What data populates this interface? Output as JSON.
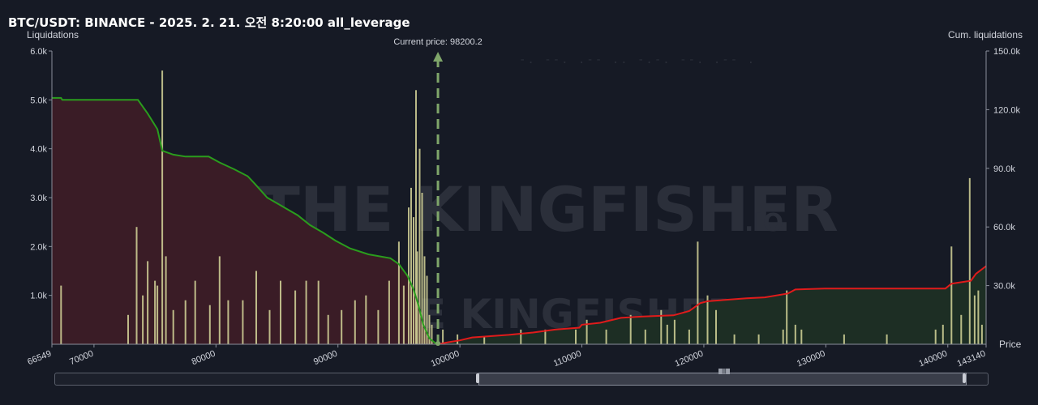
{
  "title": "BTC/USDT: BINANCE - 2025. 2. 21. 오전 8:20:00 all_leverage",
  "left_axis_title": "Liquidations",
  "right_axis_title": "Cum. liquidations",
  "price_label": "Price",
  "current_price_label": "Current price: 98200.2",
  "watermark": {
    "text": "THE KINGFISHER",
    "suffix": ".IO"
  },
  "redacted_text": "-.  --.  .--  ..  -.-.  --.  .--  .",
  "colors": {
    "background": "#161a25",
    "long_cum": "#2a9d1d",
    "long_fill": "#3a1c26",
    "short_cum": "#e01b1b",
    "short_fill": "#1d2e24",
    "bars": "#d6d69a",
    "current_price": "#7fa66a"
  },
  "chart_data": {
    "type": "bar",
    "title": "BTC/USDT: BINANCE - 2025. 2. 21. 오전 8:20:00 all_leverage",
    "xlabel": "Price",
    "ylabel": "Liquidations",
    "y2label": "Cum. liquidations",
    "xlim": [
      66549,
      143140
    ],
    "ylim": [
      0,
      6000
    ],
    "y2lim": [
      0,
      150000
    ],
    "grid": false,
    "current_price": 98200.2,
    "x_ticks": [
      "66549",
      "70000",
      "80000",
      "90000",
      "100000",
      "110000",
      "120000",
      "130000",
      "140000",
      "143140"
    ],
    "y_ticks": [
      "1.0k",
      "2.0k",
      "3.0k",
      "4.0k",
      "5.0k",
      "6.0k"
    ],
    "y2_ticks": [
      "30.0k",
      "60.0k",
      "90.0k",
      "120.0k",
      "150.0k"
    ],
    "liquidation_bars": [
      {
        "x": 67300,
        "y": 1200
      },
      {
        "x": 72800,
        "y": 600
      },
      {
        "x": 73500,
        "y": 2400
      },
      {
        "x": 74000,
        "y": 1000
      },
      {
        "x": 74400,
        "y": 1700
      },
      {
        "x": 75000,
        "y": 1300
      },
      {
        "x": 75200,
        "y": 1200
      },
      {
        "x": 75600,
        "y": 5600
      },
      {
        "x": 75900,
        "y": 1800
      },
      {
        "x": 76500,
        "y": 700
      },
      {
        "x": 77500,
        "y": 900
      },
      {
        "x": 78300,
        "y": 1300
      },
      {
        "x": 79500,
        "y": 800
      },
      {
        "x": 80300,
        "y": 1800
      },
      {
        "x": 81000,
        "y": 900
      },
      {
        "x": 82200,
        "y": 900
      },
      {
        "x": 83300,
        "y": 1500
      },
      {
        "x": 84400,
        "y": 700
      },
      {
        "x": 85300,
        "y": 1300
      },
      {
        "x": 86500,
        "y": 1100
      },
      {
        "x": 87400,
        "y": 1300
      },
      {
        "x": 88400,
        "y": 1300
      },
      {
        "x": 89200,
        "y": 600
      },
      {
        "x": 90300,
        "y": 700
      },
      {
        "x": 91400,
        "y": 900
      },
      {
        "x": 92300,
        "y": 1000
      },
      {
        "x": 93300,
        "y": 700
      },
      {
        "x": 94200,
        "y": 1300
      },
      {
        "x": 95000,
        "y": 2100
      },
      {
        "x": 95400,
        "y": 1200
      },
      {
        "x": 95800,
        "y": 2800
      },
      {
        "x": 96000,
        "y": 3200
      },
      {
        "x": 96200,
        "y": 2600
      },
      {
        "x": 96400,
        "y": 5200
      },
      {
        "x": 96500,
        "y": 1900
      },
      {
        "x": 96700,
        "y": 4000
      },
      {
        "x": 96900,
        "y": 3100
      },
      {
        "x": 97100,
        "y": 1800
      },
      {
        "x": 97300,
        "y": 1400
      },
      {
        "x": 97500,
        "y": 600
      },
      {
        "x": 97700,
        "y": 400
      },
      {
        "x": 98600,
        "y": 300
      },
      {
        "x": 99800,
        "y": 200
      },
      {
        "x": 102000,
        "y": 150
      },
      {
        "x": 105000,
        "y": 300
      },
      {
        "x": 107000,
        "y": 300
      },
      {
        "x": 109500,
        "y": 300
      },
      {
        "x": 110400,
        "y": 500
      },
      {
        "x": 112000,
        "y": 300
      },
      {
        "x": 114000,
        "y": 600
      },
      {
        "x": 115200,
        "y": 300
      },
      {
        "x": 116500,
        "y": 700
      },
      {
        "x": 117000,
        "y": 400
      },
      {
        "x": 117600,
        "y": 500
      },
      {
        "x": 118800,
        "y": 300
      },
      {
        "x": 119500,
        "y": 2100
      },
      {
        "x": 120300,
        "y": 1000
      },
      {
        "x": 121000,
        "y": 700
      },
      {
        "x": 122500,
        "y": 200
      },
      {
        "x": 124500,
        "y": 200
      },
      {
        "x": 126500,
        "y": 300
      },
      {
        "x": 126800,
        "y": 1100
      },
      {
        "x": 127500,
        "y": 400
      },
      {
        "x": 128000,
        "y": 300
      },
      {
        "x": 131500,
        "y": 200
      },
      {
        "x": 135000,
        "y": 200
      },
      {
        "x": 139000,
        "y": 300
      },
      {
        "x": 139600,
        "y": 400
      },
      {
        "x": 140300,
        "y": 2000
      },
      {
        "x": 141100,
        "y": 600
      },
      {
        "x": 141800,
        "y": 3400
      },
      {
        "x": 142200,
        "y": 1000
      },
      {
        "x": 142500,
        "y": 1100
      },
      {
        "x": 142800,
        "y": 400
      }
    ],
    "long_cumulative": [
      {
        "x": 66549,
        "y": 126000
      },
      {
        "x": 67300,
        "y": 126000
      },
      {
        "x": 67400,
        "y": 125000
      },
      {
        "x": 73600,
        "y": 125000
      },
      {
        "x": 74400,
        "y": 118000
      },
      {
        "x": 75200,
        "y": 110000
      },
      {
        "x": 75600,
        "y": 99000
      },
      {
        "x": 76500,
        "y": 97000
      },
      {
        "x": 77500,
        "y": 96000
      },
      {
        "x": 79400,
        "y": 96000
      },
      {
        "x": 80300,
        "y": 93000
      },
      {
        "x": 81500,
        "y": 89500
      },
      {
        "x": 82600,
        "y": 86000
      },
      {
        "x": 83200,
        "y": 82000
      },
      {
        "x": 84200,
        "y": 75000
      },
      {
        "x": 85600,
        "y": 70000
      },
      {
        "x": 86700,
        "y": 66000
      },
      {
        "x": 87700,
        "y": 61000
      },
      {
        "x": 88800,
        "y": 57000
      },
      {
        "x": 89800,
        "y": 53000
      },
      {
        "x": 91000,
        "y": 49000
      },
      {
        "x": 92500,
        "y": 46000
      },
      {
        "x": 94300,
        "y": 44000
      },
      {
        "x": 95000,
        "y": 41000
      },
      {
        "x": 95700,
        "y": 35000
      },
      {
        "x": 96200,
        "y": 28000
      },
      {
        "x": 96600,
        "y": 20000
      },
      {
        "x": 97000,
        "y": 10000
      },
      {
        "x": 97500,
        "y": 3000
      },
      {
        "x": 98000,
        "y": 500
      },
      {
        "x": 98200,
        "y": 0
      }
    ],
    "short_cumulative": [
      {
        "x": 98200,
        "y": 0
      },
      {
        "x": 99000,
        "y": 1000
      },
      {
        "x": 100000,
        "y": 2000
      },
      {
        "x": 101000,
        "y": 3500
      },
      {
        "x": 104000,
        "y": 4800
      },
      {
        "x": 106000,
        "y": 6000
      },
      {
        "x": 107800,
        "y": 7500
      },
      {
        "x": 109800,
        "y": 8500
      },
      {
        "x": 110000,
        "y": 10000
      },
      {
        "x": 111500,
        "y": 11000
      },
      {
        "x": 113200,
        "y": 13500
      },
      {
        "x": 115000,
        "y": 14200
      },
      {
        "x": 117500,
        "y": 14800
      },
      {
        "x": 118800,
        "y": 17000
      },
      {
        "x": 119700,
        "y": 21000
      },
      {
        "x": 120300,
        "y": 22000
      },
      {
        "x": 123500,
        "y": 23500
      },
      {
        "x": 125000,
        "y": 24000
      },
      {
        "x": 126900,
        "y": 26000
      },
      {
        "x": 127500,
        "y": 28000
      },
      {
        "x": 130000,
        "y": 28500
      },
      {
        "x": 139800,
        "y": 28500
      },
      {
        "x": 140300,
        "y": 31000
      },
      {
        "x": 141900,
        "y": 32500
      },
      {
        "x": 142300,
        "y": 36000
      },
      {
        "x": 143140,
        "y": 40000
      }
    ]
  }
}
